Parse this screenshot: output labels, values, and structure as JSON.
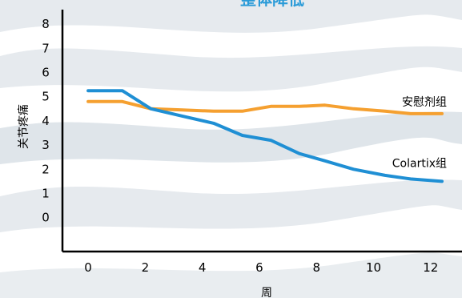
{
  "chart_data": {
    "type": "line",
    "title": "整体降低",
    "xlabel": "周",
    "ylabel": "关节疼痛",
    "xlim": [
      -0.9,
      13.1
    ],
    "ylim": [
      -1.4,
      8.6
    ],
    "x_ticks": [
      0,
      2,
      4,
      6,
      8,
      10,
      12
    ],
    "y_ticks": [
      0,
      1,
      2,
      3,
      4,
      5,
      6,
      7,
      8
    ],
    "grid": false,
    "legend": "inline labels at right end of lines",
    "series": [
      {
        "name": "安慰剂组",
        "color": "#f5a030",
        "x": [
          0,
          1.2,
          2.2,
          3.3,
          4.4,
          5.4,
          6.4,
          7.4,
          8.3,
          9.3,
          10.4,
          11.3,
          12.4
        ],
        "y": [
          4.8,
          4.8,
          4.5,
          4.45,
          4.4,
          4.4,
          4.6,
          4.6,
          4.65,
          4.5,
          4.4,
          4.3,
          4.3
        ]
      },
      {
        "name": "Colartix组",
        "color": "#1f8fd4",
        "x": [
          0,
          1.2,
          2.2,
          3.3,
          4.4,
          5.4,
          6.4,
          7.4,
          8.3,
          9.3,
          10.4,
          11.3,
          12.4
        ],
        "y": [
          5.25,
          5.25,
          4.5,
          4.2,
          3.9,
          3.4,
          3.2,
          2.65,
          2.35,
          2.0,
          1.75,
          1.6,
          1.5
        ]
      }
    ]
  }
}
